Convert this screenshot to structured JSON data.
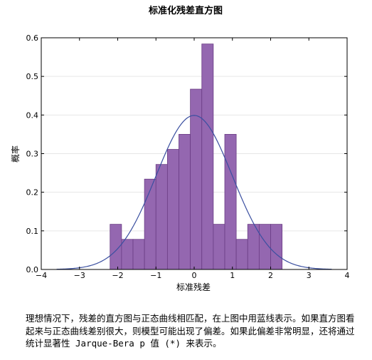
{
  "chart_data": {
    "type": "bar",
    "title": "标准化残差直方图",
    "xlabel": "标准残差",
    "ylabel": "概率",
    "xlim": [
      -4,
      4
    ],
    "ylim": [
      0,
      0.6
    ],
    "xticks": [
      -4,
      -3,
      -2,
      -1,
      0,
      1,
      2,
      3,
      4
    ],
    "yticks": [
      0.0,
      0.1,
      0.2,
      0.3,
      0.4,
      0.5,
      0.6
    ],
    "xtick_labels": [
      "−4",
      "−3",
      "−2",
      "−1",
      "0",
      "1",
      "2",
      "3",
      "4"
    ],
    "ytick_labels": [
      "0.0",
      "0.1",
      "0.2",
      "0.3",
      "0.4",
      "0.5",
      "0.6"
    ],
    "grid": true,
    "bar_color": "#9467b0",
    "bar_edge_color": "#6a3d85",
    "curve_color": "#3a4fa0",
    "bins": [
      {
        "x0": -2.2,
        "x1": -1.9,
        "value": 0.117
      },
      {
        "x0": -1.9,
        "x1": -1.6,
        "value": 0.078
      },
      {
        "x0": -1.6,
        "x1": -1.3,
        "value": 0.078
      },
      {
        "x0": -1.3,
        "x1": -1.0,
        "value": 0.234
      },
      {
        "x0": -1.0,
        "x1": -0.7,
        "value": 0.272
      },
      {
        "x0": -0.7,
        "x1": -0.4,
        "value": 0.311
      },
      {
        "x0": -0.4,
        "x1": -0.1,
        "value": 0.35
      },
      {
        "x0": -0.1,
        "x1": 0.2,
        "value": 0.467
      },
      {
        "x0": 0.2,
        "x1": 0.5,
        "value": 0.584
      },
      {
        "x0": 0.5,
        "x1": 0.8,
        "value": 0.117
      },
      {
        "x0": 0.8,
        "x1": 1.1,
        "value": 0.35
      },
      {
        "x0": 1.1,
        "x1": 1.4,
        "value": 0.078
      },
      {
        "x0": 1.4,
        "x1": 1.7,
        "value": 0.117
      },
      {
        "x0": 1.7,
        "x1": 2.0,
        "value": 0.117
      },
      {
        "x0": 2.0,
        "x1": 2.3,
        "value": 0.117
      }
    ],
    "curve": {
      "type": "normal-pdf",
      "mean": 0,
      "std": 1,
      "x_range": [
        -3.6,
        3.6
      ]
    }
  },
  "caption": "理想情况下，残差的直方图与正态曲线相匹配，在上图中用蓝线表示。如果直方图看起来与正态曲线差别很大，则模型可能出现了偏差。如果此偏差非常明显，还将通过统计显著性 Jarque-Bera p 值 (*) 来表示。"
}
